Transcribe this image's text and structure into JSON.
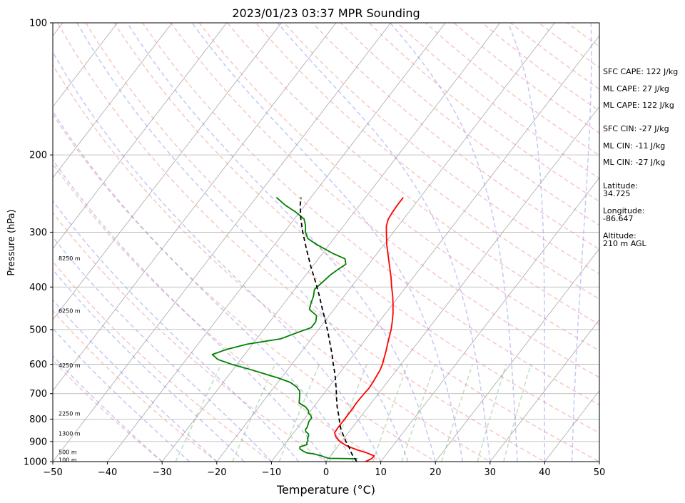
{
  "chart_data": {
    "type": "line",
    "title": "2023/01/23 03:37 MPR Sounding",
    "xlabel": "Temperature (°C)",
    "ylabel": "Pressure (hPa)",
    "xlim": [
      -50,
      50
    ],
    "ylim": [
      1000,
      100
    ],
    "y_scale": "log",
    "x_ticks": [
      -50,
      -40,
      -30,
      -20,
      -10,
      0,
      10,
      20,
      30,
      40,
      50
    ],
    "y_ticks": [
      1000,
      900,
      800,
      700,
      600,
      500,
      400,
      300,
      200,
      100
    ],
    "grid": "horizontal pressure lines",
    "height_labels": [
      {
        "p": 995,
        "text": "100 m"
      },
      {
        "p": 955,
        "text": "500 m"
      },
      {
        "p": 865,
        "text": "1300 m"
      },
      {
        "p": 780,
        "text": "2250 m"
      },
      {
        "p": 605,
        "text": "4250 m"
      },
      {
        "p": 455,
        "text": "6250 m"
      },
      {
        "p": 345,
        "text": "8250 m"
      }
    ],
    "series": [
      {
        "role": "temperature",
        "color": "#ff0000",
        "points": [
          [
            1000,
            7.2
          ],
          [
            985,
            7.9
          ],
          [
            970,
            8.0
          ],
          [
            955,
            6.2
          ],
          [
            940,
            4.0
          ],
          [
            920,
            1.5
          ],
          [
            900,
            -0.3
          ],
          [
            880,
            -1.6
          ],
          [
            860,
            -2.5
          ],
          [
            840,
            -2.6
          ],
          [
            820,
            -2.6
          ],
          [
            800,
            -2.6
          ],
          [
            780,
            -2.6
          ],
          [
            760,
            -2.6
          ],
          [
            740,
            -2.7
          ],
          [
            720,
            -2.7
          ],
          [
            700,
            -2.6
          ],
          [
            680,
            -2.5
          ],
          [
            660,
            -2.6
          ],
          [
            640,
            -2.8
          ],
          [
            620,
            -3.0
          ],
          [
            600,
            -3.4
          ],
          [
            580,
            -4.0
          ],
          [
            560,
            -4.6
          ],
          [
            540,
            -5.3
          ],
          [
            520,
            -6.0
          ],
          [
            500,
            -6.7
          ],
          [
            480,
            -7.6
          ],
          [
            460,
            -8.6
          ],
          [
            440,
            -9.8
          ],
          [
            420,
            -11.1
          ],
          [
            400,
            -12.6
          ],
          [
            380,
            -14.1
          ],
          [
            360,
            -15.8
          ],
          [
            340,
            -17.6
          ],
          [
            320,
            -19.5
          ],
          [
            300,
            -21.3
          ],
          [
            290,
            -22.2
          ],
          [
            280,
            -22.8
          ],
          [
            270,
            -23.0
          ],
          [
            260,
            -23.1
          ],
          [
            250,
            -23.1
          ]
        ]
      },
      {
        "role": "dewpoint",
        "color": "#008000",
        "points": [
          [
            985,
            5.3
          ],
          [
            983,
            0.1
          ],
          [
            980,
            -0.4
          ],
          [
            975,
            -1.1
          ],
          [
            970,
            -1.7
          ],
          [
            960,
            -3.4
          ],
          [
            955,
            -4.8
          ],
          [
            945,
            -5.8
          ],
          [
            935,
            -6.6
          ],
          [
            925,
            -6.9
          ],
          [
            915,
            -5.9
          ],
          [
            905,
            -6.2
          ],
          [
            895,
            -6.3
          ],
          [
            885,
            -6.7
          ],
          [
            875,
            -6.8
          ],
          [
            865,
            -7.1
          ],
          [
            855,
            -7.9
          ],
          [
            845,
            -8.3
          ],
          [
            835,
            -8.3
          ],
          [
            825,
            -8.5
          ],
          [
            810,
            -8.8
          ],
          [
            795,
            -8.8
          ],
          [
            785,
            -9.3
          ],
          [
            775,
            -10.1
          ],
          [
            765,
            -10.4
          ],
          [
            750,
            -11.5
          ],
          [
            735,
            -13.2
          ],
          [
            720,
            -13.7
          ],
          [
            705,
            -14.2
          ],
          [
            690,
            -14.8
          ],
          [
            675,
            -16.0
          ],
          [
            660,
            -17.7
          ],
          [
            645,
            -20.5
          ],
          [
            630,
            -23.8
          ],
          [
            615,
            -27.2
          ],
          [
            600,
            -31.0
          ],
          [
            585,
            -34.2
          ],
          [
            570,
            -35.9
          ],
          [
            555,
            -34.0
          ],
          [
            540,
            -31.0
          ],
          [
            525,
            -25.6
          ],
          [
            510,
            -23.7
          ],
          [
            495,
            -21.6
          ],
          [
            480,
            -21.6
          ],
          [
            465,
            -22.3
          ],
          [
            450,
            -24.5
          ],
          [
            435,
            -25.1
          ],
          [
            420,
            -25.6
          ],
          [
            405,
            -26.4
          ],
          [
            395,
            -26.1
          ],
          [
            385,
            -25.8
          ],
          [
            375,
            -25.5
          ],
          [
            365,
            -24.9
          ],
          [
            355,
            -24.2
          ],
          [
            345,
            -25.1
          ],
          [
            335,
            -28.2
          ],
          [
            320,
            -32.3
          ],
          [
            310,
            -34.8
          ],
          [
            300,
            -36.1
          ],
          [
            290,
            -37.0
          ],
          [
            280,
            -38.2
          ],
          [
            270,
            -40.7
          ],
          [
            260,
            -43.7
          ],
          [
            250,
            -46.3
          ]
        ]
      },
      {
        "role": "parcel",
        "color": "#000000",
        "style": "dashed",
        "points": [
          [
            1000,
            5.6
          ],
          [
            960,
            3.6
          ],
          [
            930,
            2.3
          ],
          [
            900,
            0.8
          ],
          [
            870,
            -0.6
          ],
          [
            840,
            -2.0
          ],
          [
            810,
            -3.2
          ],
          [
            780,
            -4.4
          ],
          [
            750,
            -5.7
          ],
          [
            720,
            -6.9
          ],
          [
            690,
            -8.1
          ],
          [
            660,
            -9.4
          ],
          [
            630,
            -10.8
          ],
          [
            600,
            -12.4
          ],
          [
            570,
            -14.0
          ],
          [
            540,
            -15.8
          ],
          [
            510,
            -17.7
          ],
          [
            480,
            -19.8
          ],
          [
            450,
            -22.1
          ],
          [
            420,
            -24.5
          ],
          [
            390,
            -27.2
          ],
          [
            360,
            -30.2
          ],
          [
            330,
            -33.3
          ],
          [
            300,
            -36.6
          ],
          [
            280,
            -38.8
          ],
          [
            260,
            -40.9
          ],
          [
            250,
            -41.8
          ]
        ]
      }
    ]
  },
  "sidebar": {
    "sfc_cape": "SFC CAPE: 122 J/kg",
    "ml_cape_1": "ML CAPE: 27 J/kg",
    "ml_cape_2": "ML CAPE: 122 J/kg",
    "sfc_cin": "SFC CIN: -27 J/kg",
    "ml_cin_1": "ML CIN: -11 J/kg",
    "ml_cin_2": "ML CIN: -27 J/kg",
    "latitude_label": "Latitude:",
    "latitude_value": "34.725",
    "longitude_label": "Longitude:",
    "longitude_value": "-86.647",
    "altitude_label": "Altitude:",
    "altitude_value": "210 m AGL"
  }
}
